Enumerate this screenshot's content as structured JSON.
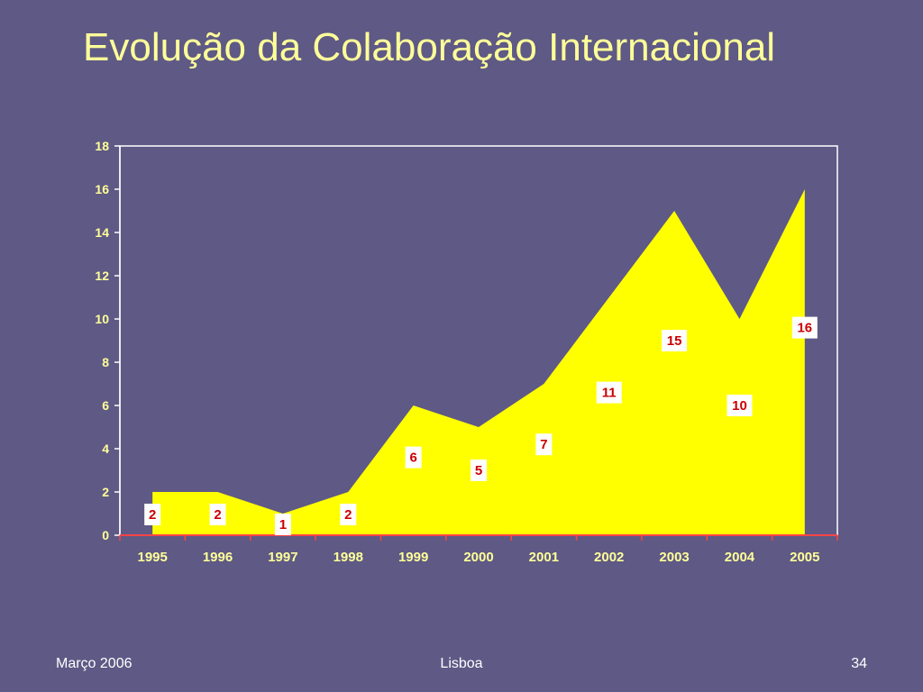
{
  "slide": {
    "title": "Evolução da Colaboração Internacional",
    "footer_left": "Março 2006",
    "footer_center": "Lisboa",
    "page_number": "34"
  },
  "colors": {
    "background": "#5e5985",
    "title": "#ffff99",
    "area_fill": "#ffff00",
    "axis_text": "#ffff99",
    "data_label_text": "#cc0000",
    "data_label_bg": "#ffffff",
    "baseline": "#ff4444",
    "plot_border": "#ffffff"
  },
  "chart_data": {
    "type": "area",
    "title": "",
    "xlabel": "",
    "ylabel": "",
    "categories": [
      "1995",
      "1996",
      "1997",
      "1998",
      "1999",
      "2000",
      "2001",
      "2002",
      "2003",
      "2004",
      "2005"
    ],
    "values": [
      2,
      2,
      1,
      2,
      6,
      5,
      7,
      11,
      15,
      10,
      16
    ],
    "ylim": [
      0,
      18
    ],
    "yticks": [
      0,
      2,
      4,
      6,
      8,
      10,
      12,
      14,
      16,
      18
    ],
    "grid": false,
    "legend": "none",
    "data_labels": true
  }
}
